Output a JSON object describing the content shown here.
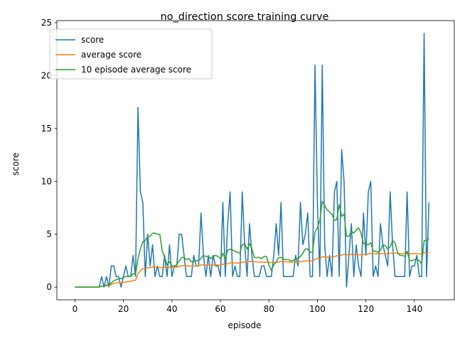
{
  "chart_data": {
    "type": "line",
    "title": "no_direction score training curve",
    "xlabel": "episode",
    "ylabel": "score",
    "xlim": [
      -7.45,
      156.45
    ],
    "ylim": [
      -1.2,
      25.2
    ],
    "xticks": [
      0,
      20,
      40,
      60,
      80,
      100,
      120,
      140
    ],
    "yticks": [
      0,
      5,
      10,
      15,
      20,
      25
    ],
    "grid": false,
    "legend_position": "top-left",
    "series": [
      {
        "name": "score",
        "color": "#1f77b4",
        "values": [
          0,
          0,
          0,
          0,
          0,
          0,
          0,
          0,
          0,
          0,
          0,
          1,
          0,
          1,
          0,
          2,
          2,
          1,
          1,
          0,
          1,
          2,
          1,
          1,
          3,
          1,
          17,
          9,
          8,
          1,
          5,
          2,
          4,
          1,
          2,
          1,
          1,
          3,
          1,
          4,
          1,
          2,
          2,
          5,
          5,
          3,
          1,
          1,
          1,
          3,
          2,
          2,
          7,
          3,
          1,
          3,
          1,
          3,
          2,
          2,
          1,
          8,
          1,
          6,
          9,
          1,
          2,
          1,
          1,
          9,
          4,
          1,
          6,
          3,
          1,
          1,
          1,
          2,
          2,
          1,
          1,
          1,
          3,
          6,
          3,
          8,
          1,
          1,
          1,
          1,
          1,
          3,
          2,
          8,
          4,
          5,
          7,
          1,
          1,
          21,
          8,
          1,
          21,
          4,
          1,
          3,
          1,
          9,
          10,
          1,
          13,
          10,
          0,
          3,
          6,
          1,
          4,
          2,
          1,
          7,
          3,
          9,
          10,
          1,
          2,
          1,
          6,
          4,
          3,
          2,
          9,
          4,
          1,
          1,
          1,
          1,
          1,
          9,
          1,
          2,
          2,
          3,
          1,
          1,
          24,
          1,
          8
        ]
      },
      {
        "name": "average score",
        "color": "#ff7f0e",
        "values": [
          0,
          0,
          0,
          0,
          0,
          0,
          0,
          0,
          0,
          0,
          0,
          0.09,
          0.08,
          0.14,
          0.13,
          0.25,
          0.35,
          0.39,
          0.42,
          0.4,
          0.43,
          0.5,
          0.52,
          0.54,
          0.64,
          0.65,
          1.26,
          1.54,
          1.76,
          1.73,
          1.84,
          1.84,
          1.91,
          1.88,
          1.88,
          1.86,
          1.84,
          1.87,
          1.85,
          1.9,
          1.88,
          1.88,
          1.88,
          1.95,
          2.02,
          2.04,
          2.02,
          2.0,
          1.98,
          2.0,
          2.0,
          2.0,
          2.09,
          2.11,
          2.09,
          2.1,
          2.08,
          2.09,
          2.09,
          2.09,
          2.07,
          2.17,
          2.15,
          2.21,
          2.31,
          2.29,
          2.29,
          2.27,
          2.25,
          2.35,
          2.38,
          2.36,
          2.41,
          2.42,
          2.4,
          2.38,
          2.37,
          2.36,
          2.36,
          2.35,
          2.33,
          2.32,
          2.32,
          2.36,
          2.37,
          2.43,
          2.41,
          2.39,
          2.38,
          2.37,
          2.35,
          2.36,
          2.36,
          2.42,
          2.43,
          2.46,
          2.5,
          2.48,
          2.46,
          2.65,
          2.71,
          2.69,
          2.86,
          2.87,
          2.85,
          2.85,
          2.83,
          2.89,
          2.96,
          2.94,
          3.03,
          3.09,
          3.06,
          3.06,
          3.09,
          3.07,
          3.08,
          3.07,
          3.06,
          3.09,
          3.09,
          3.14,
          3.19,
          3.17,
          3.16,
          3.14,
          3.16,
          3.17,
          3.17,
          3.16,
          3.21,
          3.22,
          3.21,
          3.19,
          3.17,
          3.16,
          3.14,
          3.19,
          3.17,
          3.16,
          3.15,
          3.15,
          3.14,
          3.12,
          3.27,
          3.26,
          3.29
        ]
      },
      {
        "name": "10 episode average score",
        "color": "#2ca02c",
        "values": [
          0,
          0,
          0,
          0,
          0,
          0,
          0,
          0,
          0,
          0,
          0,
          0.1,
          0.1,
          0.2,
          0.2,
          0.4,
          0.6,
          0.7,
          0.8,
          0.8,
          0.9,
          1.0,
          1.0,
          1.0,
          1.3,
          1.2,
          2.7,
          3.6,
          4.3,
          4.4,
          4.8,
          4.8,
          5.1,
          5.1,
          5.0,
          5.0,
          3.4,
          2.8,
          2.1,
          2.4,
          2.0,
          2.0,
          2.1,
          2.5,
          2.8,
          2.8,
          2.6,
          2.7,
          2.4,
          2.4,
          2.5,
          2.5,
          2.7,
          3.0,
          2.9,
          2.9,
          2.7,
          2.9,
          3.0,
          2.9,
          2.7,
          3.2,
          2.6,
          3.5,
          3.6,
          3.5,
          3.4,
          3.3,
          3.2,
          4.0,
          4.1,
          3.6,
          4.1,
          3.6,
          2.8,
          2.8,
          2.8,
          2.7,
          2.9,
          2.9,
          2.1,
          1.6,
          2.1,
          2.4,
          2.8,
          2.8,
          2.6,
          2.6,
          2.6,
          2.5,
          2.5,
          2.7,
          2.7,
          2.9,
          3.2,
          3.6,
          3.6,
          3.3,
          3.3,
          5.2,
          5.6,
          6.3,
          8.1,
          7.7,
          7.3,
          7.1,
          6.9,
          6.3,
          6.4,
          7.8,
          6.7,
          6.9,
          4.8,
          4.8,
          5.3,
          5.1,
          5.4,
          5.6,
          5.1,
          4.1,
          4.1,
          4.0,
          4.2,
          3.4,
          3.4,
          3.3,
          3.5,
          4.0,
          3.9,
          3.6,
          3.8,
          4.4,
          4.2,
          3.3,
          3.0,
          3.0,
          2.9,
          3.4,
          2.5,
          2.5,
          2.6,
          2.6,
          2.5,
          2.2,
          4.4,
          4.4,
          4.6
        ]
      }
    ]
  }
}
